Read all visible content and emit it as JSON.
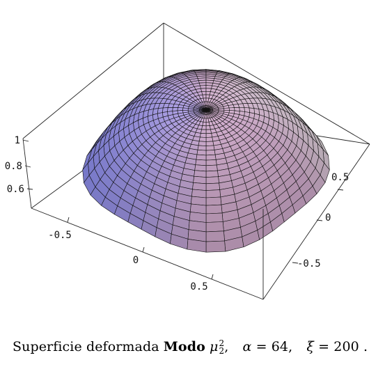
{
  "figure": {
    "axes": {
      "vertical_ticks": [
        "1",
        "0.8",
        "0.6"
      ],
      "left_axis_ticks": [
        "-0.5",
        "0",
        "0.5"
      ],
      "right_axis_ticks": [
        "0.5",
        "0",
        "-0.5"
      ]
    },
    "surface": {
      "color_low": "#c7a3c3",
      "color_left": "#7e86ef",
      "color_right": "#e7f3e4",
      "mesh_color": "#111111",
      "radial_divisions": 40,
      "ring_divisions": 24
    }
  },
  "caption": {
    "text": "Superficie deformada",
    "bold": "Modo",
    "mode_symbol": "μ",
    "mode_sup": "2",
    "mode_sub": "2",
    "alpha_symbol": "α",
    "alpha_value": "= 64,",
    "xi_symbol": "ξ",
    "xi_value": "= 200",
    "end": "."
  }
}
